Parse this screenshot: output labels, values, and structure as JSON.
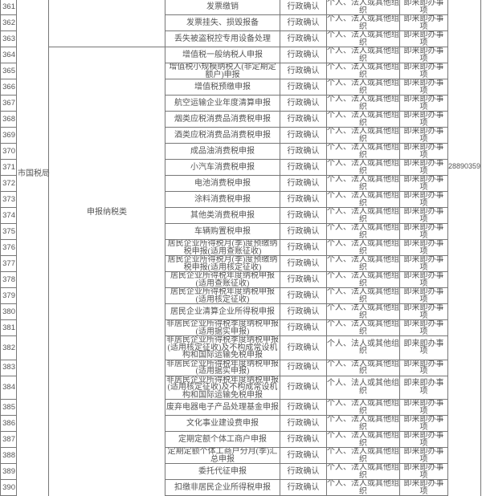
{
  "department": "市国税局",
  "category_top": "",
  "category": "申报纳税类",
  "phone": "28890359",
  "rows": [
    {
      "num": "361",
      "item": "发票缴销",
      "type": "行政确认",
      "target": "个人、法人或其他组织",
      "kind": "即来即办事项"
    },
    {
      "num": "362",
      "item": "发票挂失、损毁报备",
      "type": "行政确认",
      "target": "个人、法人或其他组织",
      "kind": "即来即办事项"
    },
    {
      "num": "363",
      "item": "丢失被盗税控专用设备处理",
      "type": "行政确认",
      "target": "个人、法人或其他组织",
      "kind": "即来即办事项"
    },
    {
      "num": "364",
      "item": "增值税一般纳税人申报",
      "type": "行政确认",
      "target": "个人、法人或其他组织",
      "kind": "即来即办事项"
    },
    {
      "num": "365",
      "item": "增值税小规模纳税人(非定期定额户)申报",
      "type": "行政确认",
      "target": "个人、法人或其他组织",
      "kind": "即来即办事项"
    },
    {
      "num": "366",
      "item": "增值税预缴申报",
      "type": "行政确认",
      "target": "个人、法人或其他组织",
      "kind": "即来即办事项"
    },
    {
      "num": "367",
      "item": "航空运输企业年度清算申报",
      "type": "行政确认",
      "target": "个人、法人或其他组织",
      "kind": "即来即办事项"
    },
    {
      "num": "368",
      "item": "烟类应税消费品消费税申报",
      "type": "行政确认",
      "target": "个人、法人或其他组织",
      "kind": "即来即办事项"
    },
    {
      "num": "369",
      "item": "酒类应税消费品消费税申报",
      "type": "行政确认",
      "target": "个人、法人或其他组织",
      "kind": "即来即办事项"
    },
    {
      "num": "370",
      "item": "成品油消费税申报",
      "type": "行政确认",
      "target": "个人、法人或其他组织",
      "kind": "即来即办事项"
    },
    {
      "num": "371",
      "item": "小汽车消费税申报",
      "type": "行政确认",
      "target": "个人、法人或其他组织",
      "kind": "即来即办事项"
    },
    {
      "num": "372",
      "item": "电池消费税申报",
      "type": "行政确认",
      "target": "个人、法人或其他组织",
      "kind": "即来即办事项"
    },
    {
      "num": "373",
      "item": "涂料消费税申报",
      "type": "行政确认",
      "target": "个人、法人或其他组织",
      "kind": "即来即办事项"
    },
    {
      "num": "374",
      "item": "其他类消费税申报",
      "type": "行政确认",
      "target": "个人、法人或其他组织",
      "kind": "即来即办事项"
    },
    {
      "num": "375",
      "item": "车辆购置税申报",
      "type": "行政确认",
      "target": "个人、法人或其他组织",
      "kind": "即来即办事项"
    },
    {
      "num": "376",
      "item": "居民企业所得税月(季)度预缴纳税申报(适用查账征收)",
      "type": "行政确认",
      "target": "个人、法人或其他组织",
      "kind": "即来即办事项"
    },
    {
      "num": "377",
      "item": "居民企业所得税月(季)度预缴纳税申报(适用核定征收)",
      "type": "行政确认",
      "target": "个人、法人或其他组织",
      "kind": "即来即办事项"
    },
    {
      "num": "378",
      "item": "居民企业所得税年度纳税申报(适用查账征收)",
      "type": "行政确认",
      "target": "个人、法人或其他组织",
      "kind": "即来即办事项"
    },
    {
      "num": "379",
      "item": "居民企业所得税年度纳税申报(适用核定征收)",
      "type": "行政确认",
      "target": "个人、法人或其他组织",
      "kind": "即来即办事项"
    },
    {
      "num": "380",
      "item": "居民企业清算企业所得税申报",
      "type": "行政确认",
      "target": "个人、法人或其他组织",
      "kind": "即来即办事项"
    },
    {
      "num": "381",
      "item": "非居民企业所得税季度纳税申报(适用据实申报)",
      "type": "行政确认",
      "target": "个人、法人或其他组织",
      "kind": "即来即办事项"
    },
    {
      "num": "382",
      "item": "非居民企业所得税季度纳税申报(适用核定征收)及不构成常设机构和国际运输免税申报",
      "type": "行政确认",
      "target": "个人、法人或其他组织",
      "kind": "即来即办事项"
    },
    {
      "num": "383",
      "item": "非居民企业所得税年度纳税申报(适用据实申报)",
      "type": "行政确认",
      "target": "个人、法人或其他组织",
      "kind": "即来即办事项"
    },
    {
      "num": "384",
      "item": "非居民企业所得税年度纳税申报(适用核定征收)及不构成常设机构和国际运输免税申报",
      "type": "行政确认",
      "target": "个人、法人或其他组织",
      "kind": "即来即办事项"
    },
    {
      "num": "385",
      "item": "废弃电器电子产品处理基金申报",
      "type": "行政确认",
      "target": "个人、法人或其他组织",
      "kind": "即来即办事项"
    },
    {
      "num": "386",
      "item": "文化事业建设费申报",
      "type": "行政确认",
      "target": "个人、法人或其他组织",
      "kind": "即来即办事项"
    },
    {
      "num": "387",
      "item": "定期定额个体工商户申报",
      "type": "行政确认",
      "target": "个人、法人或其他组织",
      "kind": "即来即办事项"
    },
    {
      "num": "388",
      "item": "定期定额个体工商户分月(季)汇总申报",
      "type": "行政确认",
      "target": "个人、法人或其他组织",
      "kind": "即来即办事项"
    },
    {
      "num": "389",
      "item": "委托代征申报",
      "type": "行政确认",
      "target": "个人、法人或其他组织",
      "kind": "即来即办事项"
    },
    {
      "num": "390",
      "item": "扣缴非居民企业所得税申报",
      "type": "行政确认",
      "target": "个人、法人或其他组织",
      "kind": "即来即办事项"
    }
  ]
}
